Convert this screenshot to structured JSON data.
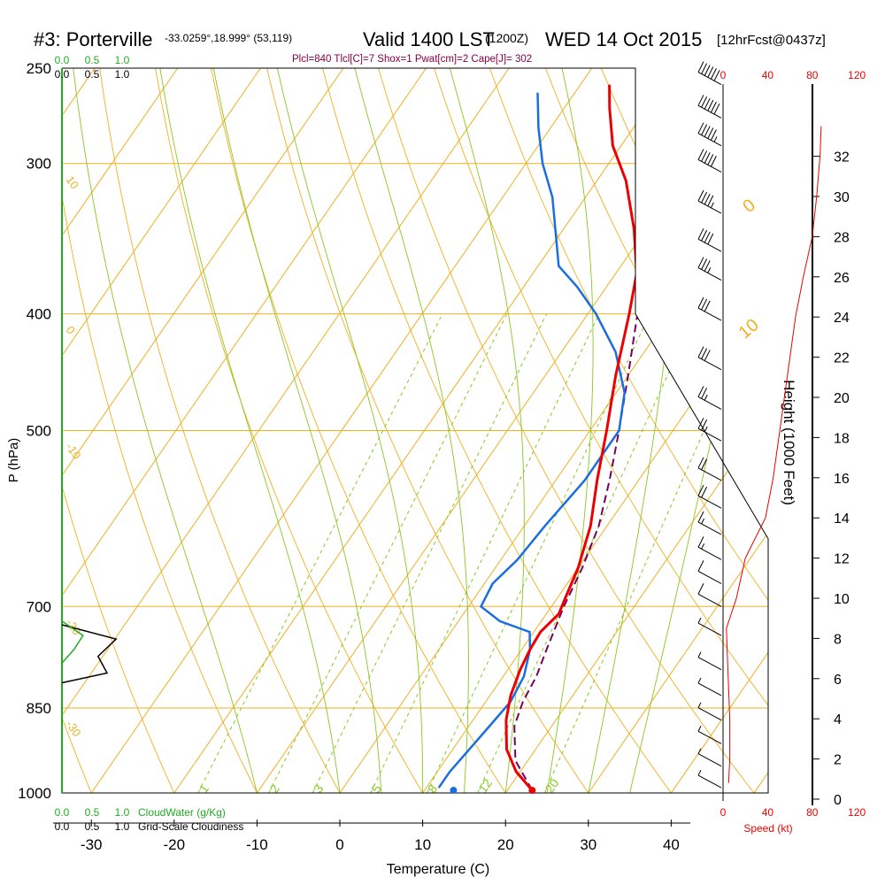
{
  "header": {
    "station": "#3: Porterville",
    "coords": "-33.0259°,18.999° (53,119)",
    "valid_main": "Valid 1400 LST",
    "valid_z": "(1200Z)",
    "valid_date": "WED 14 Oct 2015",
    "forecast": "[12hrFcst@0437z]",
    "indices": "Plcl=840 Tlcl[C]=7 Shox=1 Pwat[cm]=2 Cape[J]= 302"
  },
  "colors": {
    "temperature": "#ee0000",
    "dewpoint": "#1a6fe0",
    "parcel": "#7a0060",
    "isobar": "#f0b020",
    "isotherm": "#f0b020",
    "dry_adiabat": "#88c820",
    "moist_adiabat": "#88c820",
    "mixing_ratio": "#88c820",
    "cloudwater": "#22aa22",
    "header_indices": "#880044",
    "speed": "#ee0000"
  },
  "chart_data": {
    "type": "skew-t",
    "title": "#3: Porterville  Valid 1400 LST (1200Z) WED 14 Oct 2015",
    "xlabel": "Temperature (C)",
    "ylabel": "P (hPa)",
    "right_ylabel": "Height (1000 Feet)",
    "xlim": [
      -35,
      45
    ],
    "ylim_hpa": [
      1000,
      250
    ],
    "x_ticks": [
      "-30",
      "-20",
      "-10",
      "0",
      "10",
      "20",
      "30",
      "40"
    ],
    "p_ticks": [
      "250",
      "300",
      "400",
      "500",
      "700",
      "850",
      "1000"
    ],
    "height_ticks_kft": [
      "0",
      "2",
      "4",
      "6",
      "8",
      "10",
      "12",
      "14",
      "16",
      "18",
      "20",
      "22",
      "24",
      "26",
      "28",
      "30",
      "32"
    ],
    "speed_ticks_kt": [
      "0",
      "40",
      "80",
      "120"
    ],
    "speed_label": "Speed (kt)",
    "cloudwater_label": "CloudWater (g/Kg)",
    "cloudiness_label": "Grid-Scale Cloudiness",
    "cloud_scale_ticks": [
      "0.0",
      "0.5",
      "1.0"
    ],
    "mixing_ratio_labels": [
      "1",
      "2",
      "3",
      "5",
      "8",
      "12",
      "20"
    ],
    "temperature_profile": [
      {
        "p": 995,
        "t": 23.0
      },
      {
        "p": 960,
        "t": 19.5
      },
      {
        "p": 920,
        "t": 16.5
      },
      {
        "p": 870,
        "t": 14.0
      },
      {
        "p": 830,
        "t": 12.5
      },
      {
        "p": 790,
        "t": 11.5
      },
      {
        "p": 760,
        "t": 11.0
      },
      {
        "p": 735,
        "t": 10.8
      },
      {
        "p": 710,
        "t": 11.5
      },
      {
        "p": 690,
        "t": 11.0
      },
      {
        "p": 650,
        "t": 10.0
      },
      {
        "p": 600,
        "t": 8.0
      },
      {
        "p": 550,
        "t": 5.0
      },
      {
        "p": 500,
        "t": 2.0
      },
      {
        "p": 450,
        "t": -1.5
      },
      {
        "p": 400,
        "t": -5.0
      },
      {
        "p": 370,
        "t": -7.5
      },
      {
        "p": 340,
        "t": -11.5
      },
      {
        "p": 310,
        "t": -16.5
      },
      {
        "p": 290,
        "t": -21.0
      },
      {
        "p": 270,
        "t": -24.5
      },
      {
        "p": 258,
        "t": -26.5
      }
    ],
    "dewpoint_profile": [
      {
        "p": 990,
        "t": 11.5
      },
      {
        "p": 960,
        "t": 11.5
      },
      {
        "p": 920,
        "t": 12.0
      },
      {
        "p": 880,
        "t": 12.5
      },
      {
        "p": 840,
        "t": 13.0
      },
      {
        "p": 800,
        "t": 12.5
      },
      {
        "p": 760,
        "t": 11.0
      },
      {
        "p": 735,
        "t": 9.5
      },
      {
        "p": 720,
        "t": 5.0
      },
      {
        "p": 700,
        "t": 1.5
      },
      {
        "p": 670,
        "t": 1.0
      },
      {
        "p": 640,
        "t": 2.0
      },
      {
        "p": 600,
        "t": 2.5
      },
      {
        "p": 550,
        "t": 3.5
      },
      {
        "p": 500,
        "t": 3.5
      },
      {
        "p": 465,
        "t": 1.0
      },
      {
        "p": 430,
        "t": -3.5
      },
      {
        "p": 400,
        "t": -9.0
      },
      {
        "p": 380,
        "t": -13.5
      },
      {
        "p": 365,
        "t": -17.5
      },
      {
        "p": 340,
        "t": -21.0
      },
      {
        "p": 320,
        "t": -24.0
      },
      {
        "p": 300,
        "t": -28.0
      },
      {
        "p": 280,
        "t": -31.5
      },
      {
        "p": 262,
        "t": -34.5
      }
    ],
    "parcel_profile": [
      {
        "p": 995,
        "t": 23.0
      },
      {
        "p": 940,
        "t": 18.5
      },
      {
        "p": 880,
        "t": 15.5
      },
      {
        "p": 840,
        "t": 14.5
      },
      {
        "p": 800,
        "t": 14.0
      },
      {
        "p": 760,
        "t": 13.0
      },
      {
        "p": 700,
        "t": 11.5
      },
      {
        "p": 650,
        "t": 10.5
      },
      {
        "p": 600,
        "t": 9.0
      },
      {
        "p": 550,
        "t": 6.5
      },
      {
        "p": 500,
        "t": 3.5
      },
      {
        "p": 450,
        "t": 0.0
      },
      {
        "p": 400,
        "t": -4.0
      },
      {
        "p": 360,
        "t": -8.5
      }
    ],
    "surface_temperature": {
      "p": 995,
      "t": 23.0
    },
    "surface_dewpoint": {
      "p": 995,
      "t": 13.5
    },
    "speed_profile": [
      {
        "h": 0.8,
        "v": 5
      },
      {
        "h": 2.0,
        "v": 6
      },
      {
        "h": 4.0,
        "v": 6
      },
      {
        "h": 5.5,
        "v": 5
      },
      {
        "h": 7.0,
        "v": 4
      },
      {
        "h": 8.5,
        "v": 3
      },
      {
        "h": 10.0,
        "v": 12
      },
      {
        "h": 12.0,
        "v": 20
      },
      {
        "h": 14.0,
        "v": 38
      },
      {
        "h": 16.0,
        "v": 45
      },
      {
        "h": 18.0,
        "v": 50
      },
      {
        "h": 20.0,
        "v": 55
      },
      {
        "h": 22.0,
        "v": 60
      },
      {
        "h": 24.0,
        "v": 65
      },
      {
        "h": 26.0,
        "v": 72
      },
      {
        "h": 28.0,
        "v": 80
      },
      {
        "h": 30.0,
        "v": 84
      },
      {
        "h": 32.0,
        "v": 87
      },
      {
        "h": 33.5,
        "v": 88
      }
    ],
    "wind_barbs": [
      {
        "p": 258,
        "spd": 60
      },
      {
        "p": 275,
        "spd": 60
      },
      {
        "p": 290,
        "spd": 55
      },
      {
        "p": 305,
        "spd": 50
      },
      {
        "p": 330,
        "spd": 45
      },
      {
        "p": 355,
        "spd": 40
      },
      {
        "p": 375,
        "spd": 35
      },
      {
        "p": 405,
        "spd": 30
      },
      {
        "p": 445,
        "spd": 30
      },
      {
        "p": 480,
        "spd": 25
      },
      {
        "p": 510,
        "spd": 25
      },
      {
        "p": 550,
        "spd": 20
      },
      {
        "p": 580,
        "spd": 20
      },
      {
        "p": 610,
        "spd": 15
      },
      {
        "p": 640,
        "spd": 15
      },
      {
        "p": 670,
        "spd": 10
      },
      {
        "p": 700,
        "spd": 10
      },
      {
        "p": 740,
        "spd": 5
      },
      {
        "p": 790,
        "spd": 5
      },
      {
        "p": 830,
        "spd": 5
      },
      {
        "p": 870,
        "spd": 5
      },
      {
        "p": 910,
        "spd": 5
      },
      {
        "p": 950,
        "spd": 5
      },
      {
        "p": 990,
        "spd": 5
      }
    ],
    "cloudiness_profile": [
      {
        "p": 725,
        "v": 0.0
      },
      {
        "p": 745,
        "v": 0.9
      },
      {
        "p": 770,
        "v": 0.6
      },
      {
        "p": 795,
        "v": 0.75
      },
      {
        "p": 810,
        "v": 0.0
      }
    ],
    "cloudwater_profile": [
      {
        "p": 720,
        "v": 0.0
      },
      {
        "p": 740,
        "v": 0.35
      },
      {
        "p": 760,
        "v": 0.2
      },
      {
        "p": 780,
        "v": 0.0
      }
    ]
  }
}
